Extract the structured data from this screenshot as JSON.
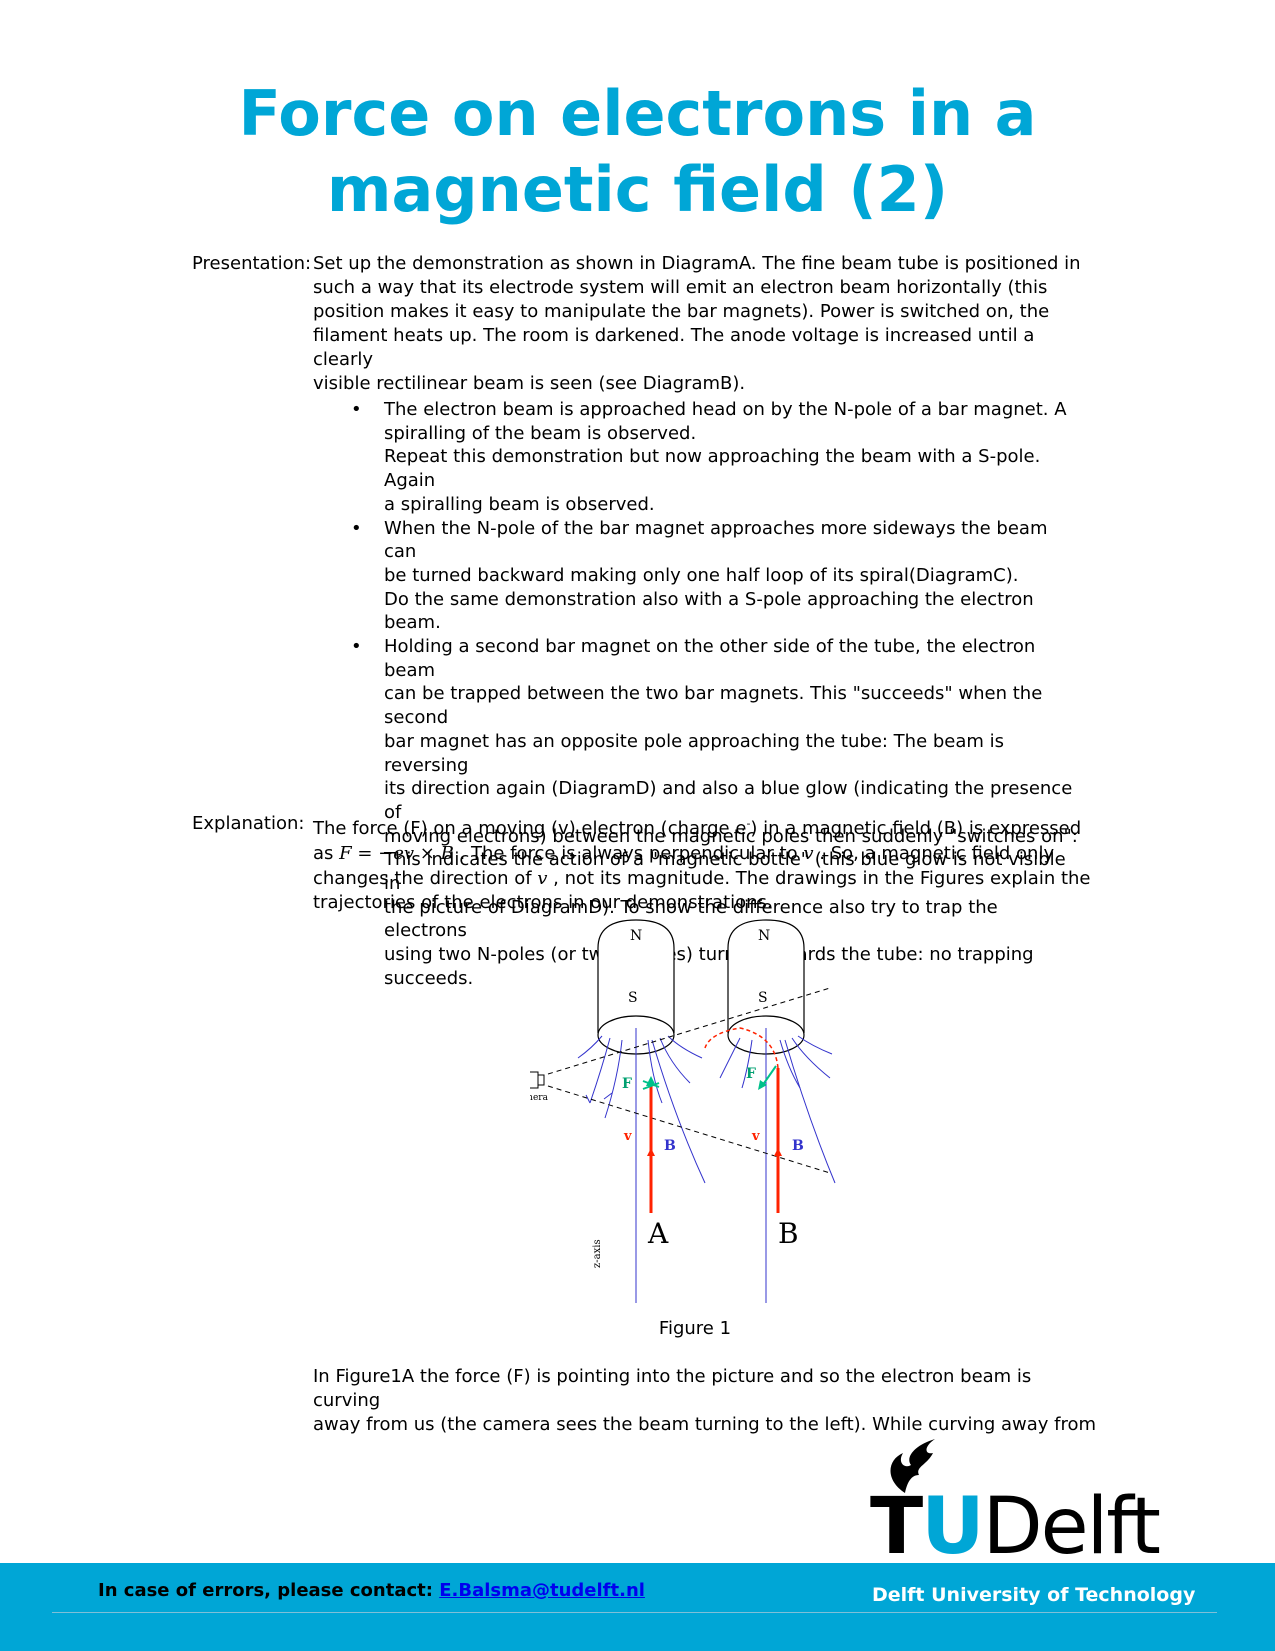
{
  "title": {
    "line1": "Force on electrons in a",
    "line2": "magnetic field (2)"
  },
  "presentation": {
    "label": "Presentation:",
    "paragraph": [
      "Set up the demonstration as shown in DiagramA. The fine beam tube is positioned in",
      "such a way that its electrode system will emit an electron beam horizontally (this",
      "position makes it easy to manipulate the bar magnets). Power is switched on, the",
      "filament heats up. The room is darkened. The anode voltage is increased until a clearly",
      "visible rectilinear beam is seen (see DiagramB)."
    ],
    "bullets": [
      [
        "The electron beam is approached head on by the N-pole of a bar magnet. A",
        "spiralling of the beam is observed.",
        "Repeat this demonstration but now approaching the beam with a S-pole. Again",
        "a spiralling beam is observed."
      ],
      [
        "When the N-pole of the bar magnet approaches more sideways the beam can",
        "be turned backward making only one half loop of its spiral(DiagramC).",
        "Do the same demonstration also with a S-pole approaching the electron beam."
      ],
      [
        "Holding a second bar magnet on the other side of the tube, the electron beam",
        "can be trapped between the two bar magnets. This \"succeeds\" when the second",
        "bar magnet has an opposite pole approaching the tube: The beam is reversing",
        "its direction again (DiagramD) and also a blue glow (indicating the presence of",
        "moving electrons) between the magnetic poles then suddenly \"switches on\":",
        "This indicates the action of a \"magnetic bottle\" (this blue glow is not visible in",
        "the picture of DiagramD). To show the difference also try to trap the electrons",
        "using two N-poles (or two S-poles) turned towards the tube: no trapping",
        "succeeds."
      ]
    ]
  },
  "explanation": {
    "label": "Explanation:",
    "line1a": "The force (F) on a moving (v) electron (charge e",
    "line1sup": "-",
    "line1b": ") in a magnetic field (B) is expressed",
    "line2a": "as ",
    "formula": "F = −ev × B",
    "line2b": " . The force is always perpendicular to ",
    "v_symbol": "v",
    "line2c": " . So, a magnetic field only",
    "line3a": "changes the direction of ",
    "line3b": " , not its magnitude. The drawings in the Figures explain the",
    "line4": "trajectories of the electrons in our demonstrations."
  },
  "figure": {
    "pole_n": "N",
    "pole_s": "S",
    "camera_label": "camera",
    "force_label": "F",
    "velocity_label": "v",
    "field_label": "B",
    "axis_label": "z-axis",
    "panel_a": "A",
    "panel_b": "B",
    "caption": "Figure 1",
    "colors": {
      "field_lines": "#3333cc",
      "beam": "#ff2200",
      "force": "#00c08a",
      "dashed": "#000000"
    }
  },
  "after_figure": [
    "In Figure1A the force (F) is pointing into the picture and so the electron beam is curving",
    "away from us (the camera sees the beam turning to the left). While curving away from"
  ],
  "logo": {
    "t": "T",
    "u": "U",
    "delft": "Delft"
  },
  "footer": {
    "contact_label": "In case of errors, please contact: ",
    "contact_email": "E.Balsma@tudelft.nl",
    "university": "Delft University of Technology",
    "accent_color": "#00a6d6"
  }
}
